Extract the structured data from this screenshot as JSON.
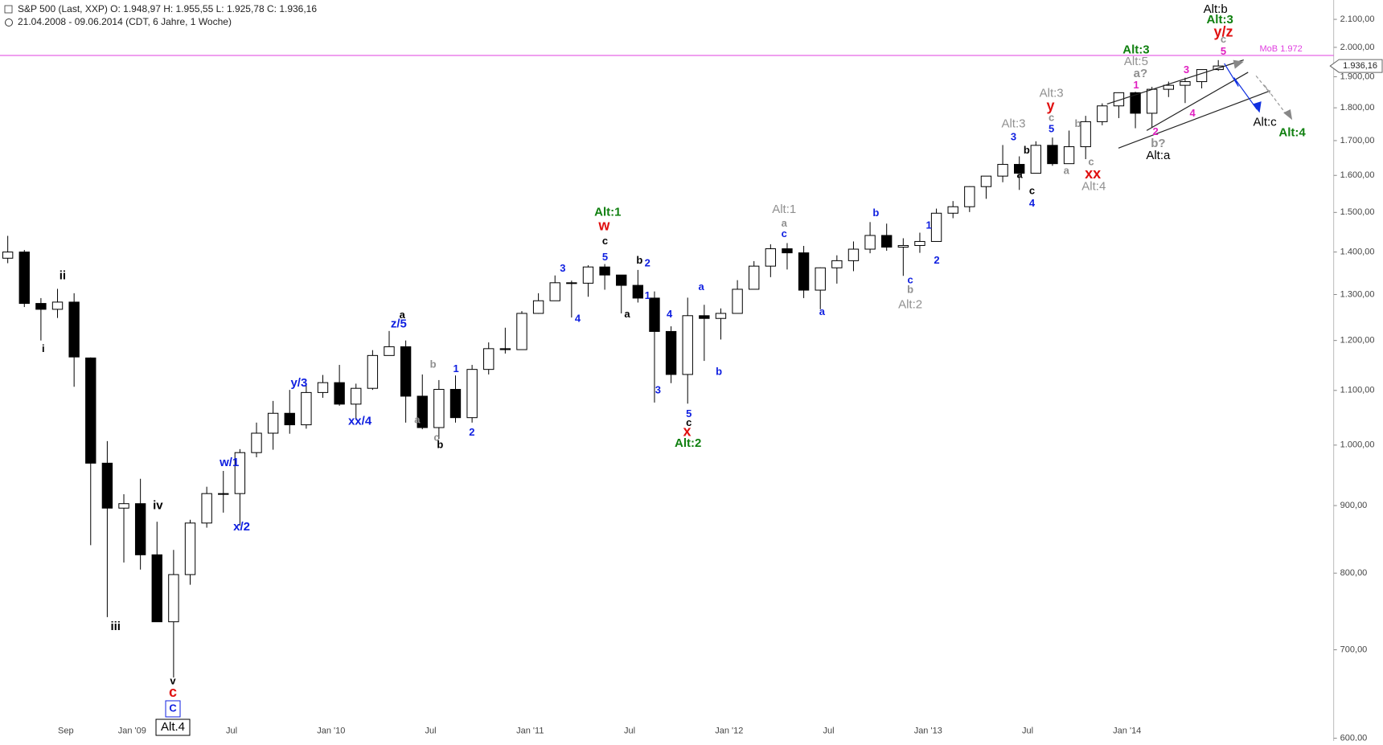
{
  "chart_data": {
    "type": "candlestick",
    "header": "S&P 500 (Last, XXP)  O: 1.948,97  H: 1.955,55  L: 1.925,78  C: 1.936,16",
    "subheader": "21.04.2008 - 09.06.2014 (CDT, 6 Jahre, 1 Woche)",
    "log_scale": true,
    "ylim": [
      593,
      2172
    ],
    "yticks": [
      {
        "value": 600,
        "label": "600,00"
      },
      {
        "value": 700,
        "label": "700,00"
      },
      {
        "value": 800,
        "label": "800,00"
      },
      {
        "value": 900,
        "label": "900,00"
      },
      {
        "value": 1000,
        "label": "1.000,00"
      },
      {
        "value": 1100,
        "label": "1.100,00"
      },
      {
        "value": 1200,
        "label": "1.200,00"
      },
      {
        "value": 1300,
        "label": "1.300,00"
      },
      {
        "value": 1400,
        "label": "1.400,00"
      },
      {
        "value": 1500,
        "label": "1.500,00"
      },
      {
        "value": 1600,
        "label": "1.600,00"
      },
      {
        "value": 1700,
        "label": "1.700,00"
      },
      {
        "value": 1800,
        "label": "1.800,00"
      },
      {
        "value": 1900,
        "label": "1.900,00"
      },
      {
        "value": 2000,
        "label": "2.000,00"
      },
      {
        "value": 2100,
        "label": "2.100,00"
      }
    ],
    "categories": [
      null,
      null,
      null,
      null,
      "Sep",
      null,
      null,
      null,
      "Jan '09",
      null,
      null,
      null,
      null,
      null,
      "Jul",
      null,
      null,
      null,
      null,
      null,
      "Jan '10",
      null,
      null,
      null,
      null,
      null,
      "Jul",
      null,
      null,
      null,
      null,
      null,
      "Jan '11",
      null,
      null,
      null,
      null,
      null,
      "Jul",
      null,
      null,
      null,
      null,
      null,
      "Jan '12",
      null,
      null,
      null,
      null,
      null,
      "Jul",
      null,
      null,
      null,
      null,
      null,
      "Jan '13",
      null,
      null,
      null,
      null,
      null,
      "Jul",
      null,
      null,
      null,
      null,
      null,
      "Jan '14",
      null,
      null,
      null,
      null,
      null
    ],
    "open": [
      1385,
      1400,
      1280,
      1267,
      1283,
      1164,
      969,
      896,
      903,
      826,
      735,
      798,
      873,
      919,
      919,
      987,
      1021,
      1057,
      1036,
      1096,
      1115,
      1074,
      1104,
      1169,
      1187,
      1089,
      1031,
      1102,
      1049,
      1141,
      1183,
      1181,
      1258,
      1286,
      1327,
      1326,
      1364,
      1345,
      1321,
      1292,
      1219,
      1131,
      1253,
      1247,
      1258,
      1312,
      1366,
      1408,
      1398,
      1310,
      1362,
      1379,
      1407,
      1441,
      1412,
      1416,
      1426,
      1498,
      1515,
      1569,
      1598,
      1631,
      1606,
      1686,
      1633,
      1682,
      1757,
      1806,
      1848,
      1783,
      1859,
      1872,
      1884,
      1924
    ],
    "high": [
      1440,
      1405,
      1292,
      1313,
      1303,
      1165,
      1007,
      918,
      943,
      875,
      833,
      878,
      930,
      956,
      993,
      1040,
      1080,
      1101,
      1113,
      1130,
      1150,
      1113,
      1180,
      1220,
      1200,
      1131,
      1120,
      1129,
      1150,
      1196,
      1227,
      1263,
      1303,
      1344,
      1332,
      1368,
      1371,
      1345,
      1357,
      1307,
      1230,
      1293,
      1277,
      1269,
      1333,
      1378,
      1419,
      1422,
      1415,
      1363,
      1392,
      1426,
      1475,
      1471,
      1434,
      1448,
      1510,
      1530,
      1570,
      1598,
      1687,
      1654,
      1698,
      1709,
      1730,
      1775,
      1814,
      1849,
      1851,
      1867,
      1884,
      1897,
      1924,
      1956
    ],
    "low": [
      1373,
      1272,
      1200,
      1248,
      1107,
      840,
      741,
      815,
      805,
      735,
      667,
      784,
      866,
      889,
      869,
      979,
      992,
      1020,
      1029,
      1086,
      1071,
      1045,
      1101,
      1170,
      1040,
      1028,
      1011,
      1040,
      1040,
      1131,
      1173,
      1181,
      1257,
      1294,
      1249,
      1295,
      1311,
      1258,
      1282,
      1077,
      1114,
      1075,
      1158,
      1202,
      1258,
      1312,
      1340,
      1358,
      1292,
      1267,
      1325,
      1354,
      1397,
      1403,
      1343,
      1398,
      1426,
      1485,
      1501,
      1536,
      1581,
      1560,
      1605,
      1627,
      1633,
      1646,
      1746,
      1768,
      1737,
      1738,
      1834,
      1815,
      1862,
      1920
    ],
    "close": [
      1400,
      1280,
      1267,
      1283,
      1166,
      969,
      896,
      903,
      826,
      735,
      798,
      873,
      919,
      919,
      987,
      1021,
      1057,
      1036,
      1096,
      1115,
      1074,
      1104,
      1169,
      1187,
      1089,
      1031,
      1102,
      1049,
      1141,
      1183,
      1181,
      1258,
      1286,
      1327,
      1326,
      1364,
      1345,
      1321,
      1292,
      1219,
      1131,
      1253,
      1247,
      1258,
      1312,
      1366,
      1408,
      1398,
      1310,
      1362,
      1379,
      1407,
      1441,
      1412,
      1416,
      1426,
      1498,
      1515,
      1569,
      1598,
      1631,
      1606,
      1686,
      1633,
      1682,
      1757,
      1806,
      1848,
      1783,
      1859,
      1872,
      1884,
      1924,
      1936
    ],
    "mob_line": {
      "value": 1972,
      "label": "MoB  1.972",
      "color": "#e040e0"
    },
    "last_price": {
      "value": 1936.16,
      "label": "1.936,16"
    },
    "annotations": [
      {
        "text": "ii",
        "color": "#000"
      },
      {
        "text": "i",
        "color": "#000"
      },
      {
        "text": "iii",
        "color": "#000"
      },
      {
        "text": "iv",
        "color": "#000"
      },
      {
        "text": "v",
        "color": "#000"
      },
      {
        "text": "c",
        "color": "#e01010"
      },
      {
        "text": "C",
        "color": "#1020e0"
      },
      {
        "text": "Alt.4",
        "color": "#000"
      },
      {
        "text": "w/1",
        "color": "#1020e0"
      },
      {
        "text": "x/2",
        "color": "#1020e0"
      },
      {
        "text": "y/3",
        "color": "#1020e0"
      },
      {
        "text": "xx/4",
        "color": "#1020e0"
      },
      {
        "text": "z/5",
        "color": "#1020e0"
      },
      {
        "text": "a",
        "color": "#000"
      },
      {
        "text": "b",
        "color": "#909090"
      },
      {
        "text": "a",
        "color": "#909090"
      },
      {
        "text": "c",
        "color": "#909090"
      },
      {
        "text": "b",
        "color": "#000"
      },
      {
        "text": "1",
        "color": "#1020e0"
      },
      {
        "text": "2",
        "color": "#1020e0"
      },
      {
        "text": "3",
        "color": "#1020e0"
      },
      {
        "text": "4",
        "color": "#1020e0"
      },
      {
        "text": "Alt:1",
        "color": "#108010"
      },
      {
        "text": "w",
        "color": "#e01010"
      },
      {
        "text": "c",
        "color": "#000"
      },
      {
        "text": "5",
        "color": "#1020e0"
      },
      {
        "text": "b",
        "color": "#000"
      },
      {
        "text": "2",
        "color": "#1020e0"
      },
      {
        "text": "1",
        "color": "#1020e0"
      },
      {
        "text": "a",
        "color": "#000"
      },
      {
        "text": "4",
        "color": "#1020e0"
      },
      {
        "text": "3",
        "color": "#1020e0"
      },
      {
        "text": "a",
        "color": "#1020e0"
      },
      {
        "text": "b",
        "color": "#1020e0"
      },
      {
        "text": "5",
        "color": "#1020e0"
      },
      {
        "text": "c",
        "color": "#000"
      },
      {
        "text": "x",
        "color": "#e01010"
      },
      {
        "text": "Alt:2",
        "color": "#108010"
      },
      {
        "text": "Alt:1",
        "color": "#909090"
      },
      {
        "text": "a",
        "color": "#909090"
      },
      {
        "text": "c",
        "color": "#1020e0"
      },
      {
        "text": "a",
        "color": "#1020e0"
      },
      {
        "text": "b",
        "color": "#1020e0"
      },
      {
        "text": "1",
        "color": "#1020e0"
      },
      {
        "text": "2",
        "color": "#1020e0"
      },
      {
        "text": "c",
        "color": "#1020e0"
      },
      {
        "text": "b",
        "color": "#909090"
      },
      {
        "text": "Alt:2",
        "color": "#909090"
      },
      {
        "text": "Alt:3",
        "color": "#909090"
      },
      {
        "text": "3",
        "color": "#1020e0"
      },
      {
        "text": "b",
        "color": "#000"
      },
      {
        "text": "a",
        "color": "#000"
      },
      {
        "text": "c",
        "color": "#000"
      },
      {
        "text": "4",
        "color": "#1020e0"
      },
      {
        "text": "Alt:3",
        "color": "#909090"
      },
      {
        "text": "y",
        "color": "#e01010"
      },
      {
        "text": "c",
        "color": "#909090"
      },
      {
        "text": "5",
        "color": "#1020e0"
      },
      {
        "text": "b",
        "color": "#909090"
      },
      {
        "text": "a",
        "color": "#909090"
      },
      {
        "text": "c",
        "color": "#909090"
      },
      {
        "text": "xx",
        "color": "#e01010"
      },
      {
        "text": "Alt:4",
        "color": "#909090"
      },
      {
        "text": "Alt:3",
        "color": "#108010"
      },
      {
        "text": "Alt:5",
        "color": "#909090"
      },
      {
        "text": "a?",
        "color": "#909090"
      },
      {
        "text": "1",
        "color": "#e020c0"
      },
      {
        "text": "2",
        "color": "#e020c0"
      },
      {
        "text": "b?",
        "color": "#909090"
      },
      {
        "text": "Alt:a",
        "color": "#000"
      },
      {
        "text": "3",
        "color": "#e020c0"
      },
      {
        "text": "4",
        "color": "#e020c0"
      },
      {
        "text": "Alt:b",
        "color": "#000"
      },
      {
        "text": "Alt:3",
        "color": "#108010"
      },
      {
        "text": "y/z",
        "color": "#e01010"
      },
      {
        "text": "c",
        "color": "#909090"
      },
      {
        "text": "5",
        "color": "#e020c0"
      },
      {
        "text": "Alt:c",
        "color": "#000"
      },
      {
        "text": "Alt:4",
        "color": "#108010"
      }
    ]
  }
}
